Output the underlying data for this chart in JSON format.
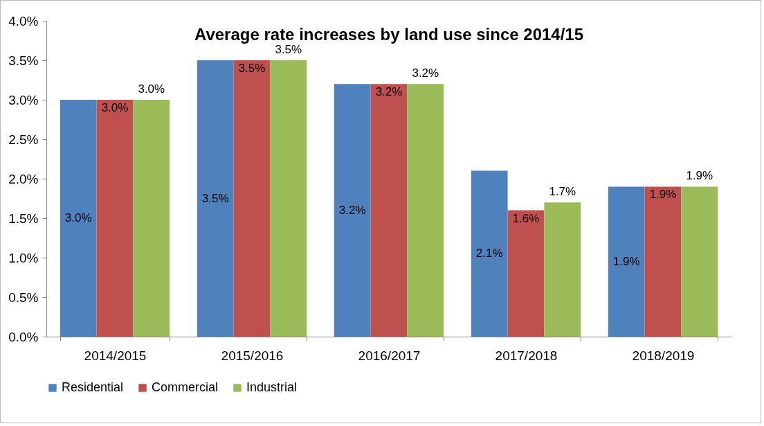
{
  "chart_data": {
    "type": "bar",
    "title": "Average rate increases by land use since 2014/15",
    "categories": [
      "2014/2015",
      "2015/2016",
      "2016/2017",
      "2017/2018",
      "2018/2019"
    ],
    "series": [
      {
        "name": "Residential",
        "color": "#4f81bd",
        "values": [
          3.0,
          3.5,
          3.2,
          2.1,
          1.9
        ],
        "value_labels": [
          "3.0%",
          "3.5%",
          "3.2%",
          "2.1%",
          "1.9%"
        ]
      },
      {
        "name": "Commercial",
        "color": "#c0504d",
        "values": [
          3.0,
          3.5,
          3.2,
          1.6,
          1.9
        ],
        "value_labels": [
          "3.0%",
          "3.5%",
          "3.2%",
          "1.6%",
          "1.9%"
        ]
      },
      {
        "name": "Industrial",
        "color": "#9bbb59",
        "values": [
          3.0,
          3.5,
          3.2,
          1.7,
          1.9
        ],
        "value_labels": [
          "3.0%",
          "3.5%",
          "3.2%",
          "1.7%",
          "1.9%"
        ]
      }
    ],
    "ylim": [
      0,
      4
    ],
    "yticks": [
      {
        "value": 0,
        "label": "0.0%"
      },
      {
        "value": 0.5,
        "label": "0.5%"
      },
      {
        "value": 1,
        "label": "1.0%"
      },
      {
        "value": 1.5,
        "label": "1.5%"
      },
      {
        "value": 2,
        "label": "2.0%"
      },
      {
        "value": 2.5,
        "label": "2.5%"
      },
      {
        "value": 3,
        "label": "3.0%"
      },
      {
        "value": 3.5,
        "label": "3.5%"
      },
      {
        "value": 4,
        "label": "4.0%"
      }
    ],
    "grid": false,
    "legend": "bottom"
  }
}
